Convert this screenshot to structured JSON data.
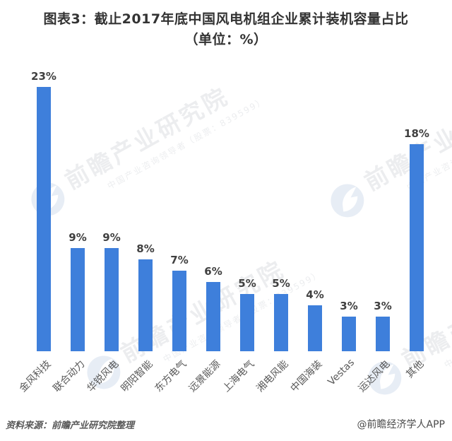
{
  "title": "图表3：截止2017年底中国风电机组企业累计装机容量占比（单位：%）",
  "chart_data": {
    "type": "bar",
    "title": "图表3：截止2017年底中国风电机组企业累计装机容量占比（单位：%）",
    "categories": [
      "金风科技",
      "联合动力",
      "华锐风电",
      "明阳智能",
      "东方电气",
      "远景能源",
      "上海电气",
      "湘电风能",
      "中国海装",
      "Vestas",
      "运达风电",
      "其他"
    ],
    "values": [
      23,
      9,
      9,
      8,
      7,
      6,
      5,
      5,
      4,
      3,
      3,
      18
    ],
    "unit": "%",
    "ylim": [
      0,
      25
    ],
    "grid": false,
    "legend": false,
    "bar_color": "#3e7fdb",
    "value_label_color": "#404040",
    "category_label_rotation_deg": -45
  },
  "watermark": {
    "logo": "qianzhan-bird-logo",
    "text": "前瞻产业研究院",
    "subtext": "中国产业咨询领导者（股票：839599）"
  },
  "footer": {
    "source": "资料来源：前瞻产业研究院整理",
    "credit": "@前瞻经济学人APP"
  },
  "colors": {
    "background": "#ffffff",
    "bar": "#3e7fdb",
    "title_text": "#333333",
    "value_label": "#404040",
    "category_label": "#595959",
    "footer_text": "#595959",
    "watermark_text": "#98a0ab",
    "watermark_logo": "#7f9ecb"
  }
}
